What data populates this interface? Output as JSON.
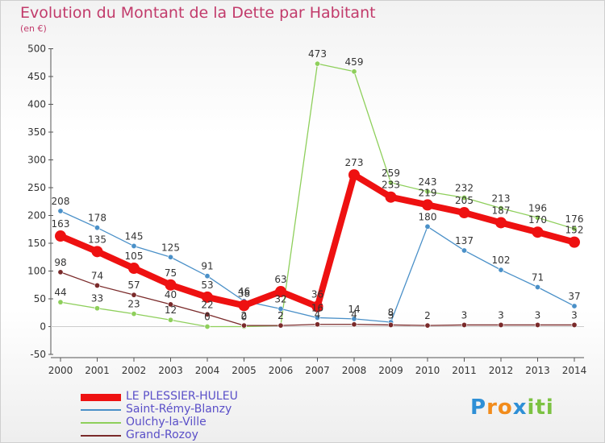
{
  "title": "Evolution du Montant de la Dette par Habitant",
  "unit_label": "(en €)",
  "logo": {
    "letters": [
      "P",
      "r",
      "o",
      "x",
      "i",
      "t",
      "i"
    ],
    "colors": [
      "#2e8fd6",
      "#f28c1c",
      "#f28c1c",
      "#2e8fd6",
      "#7cc242",
      "#7cc242",
      "#7cc242"
    ]
  },
  "chart_data": {
    "type": "line",
    "x": [
      "2000",
      "2001",
      "2002",
      "2003",
      "2004",
      "2005",
      "2006",
      "2007",
      "2008",
      "2009",
      "2010",
      "2011",
      "2012",
      "2013",
      "2014"
    ],
    "ylim": [
      -50,
      500
    ],
    "yticks": [
      -50,
      0,
      50,
      100,
      150,
      200,
      250,
      300,
      350,
      400,
      450,
      500
    ],
    "grid": false,
    "legend_position": "bottom-left",
    "series": [
      {
        "name": "LE PLESSIER-HULEU",
        "color": "#ee1111",
        "values": [
          163,
          135,
          105,
          75,
          53,
          38,
          63,
          36,
          273,
          233,
          219,
          205,
          187,
          170,
          152
        ]
      },
      {
        "name": "Saint-Rémy-Blanzy",
        "color": "#4a90c8",
        "values": [
          208,
          178,
          145,
          125,
          91,
          46,
          32,
          16,
          14,
          8,
          180,
          137,
          102,
          71,
          37
        ]
      },
      {
        "name": "Oulchy-la-Ville",
        "color": "#8ecf5b",
        "values": [
          44,
          33,
          23,
          12,
          0,
          0,
          2,
          473,
          459,
          259,
          243,
          232,
          213,
          196,
          176
        ]
      },
      {
        "name": "Grand-Rozoy",
        "color": "#7a2a2a",
        "values": [
          98,
          74,
          57,
          40,
          22,
          2,
          2,
          4,
          4,
          3,
          2,
          3,
          3,
          3,
          3
        ]
      }
    ]
  }
}
